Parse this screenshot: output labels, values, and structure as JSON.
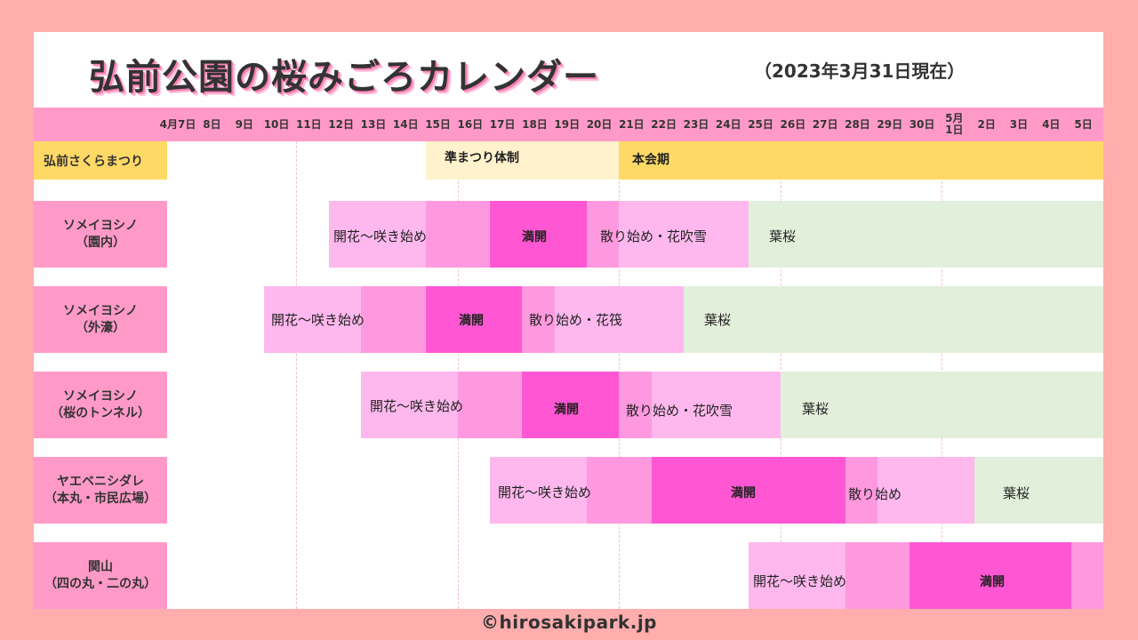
{
  "title": "弘前公園の桜みごろカレンダー",
  "date_note": "（2023年3月31日現在）",
  "dates": [
    "4月7日",
    "8日",
    "9日",
    "10日",
    "11日",
    "12日",
    "13日",
    "14日",
    "15日",
    "16日",
    "17日",
    "18日",
    "19日",
    "20日",
    "21日",
    "22日",
    "23日",
    "24日",
    "25日",
    "26日",
    "27日",
    "28日",
    "29日",
    "30日",
    "5月\n1日",
    "2日",
    "3日",
    "4日",
    "5日"
  ],
  "festival": {
    "label": "弘前さくらまつり",
    "pre_label": "準まつり体制",
    "main_label": "本会期"
  },
  "rows": [
    {
      "line1": "ソメイヨシノ",
      "line2": "（園内）",
      "bloom": "開花～咲き始め",
      "full": "満開",
      "fall": "散り始め・花吹雪",
      "leaf": "葉桜"
    },
    {
      "line1": "ソメイヨシノ",
      "line2": "（外濠）",
      "bloom": "開花～咲き始め",
      "full": "満開",
      "fall": "散り始め・花筏",
      "leaf": "葉桜"
    },
    {
      "line1": "ソメイヨシノ",
      "line2": "（桜のトンネル）",
      "bloom": "開花～咲き始め",
      "full": "満開",
      "fall": "散り始め・花吹雪",
      "leaf": "葉桜"
    },
    {
      "line1": "ヤエベニシダレ",
      "line2": "（本丸・市民広場）",
      "bloom": "開花～咲き始め",
      "full": "満開",
      "fall": "散り始め",
      "leaf": "葉桜"
    },
    {
      "line1": "関山",
      "line2": "（四の丸・二の丸）",
      "bloom": "開花～咲き始め",
      "full": "満開"
    }
  ],
  "colors": {
    "background": "#ffadad",
    "header": "#ff9ac8",
    "festival": "#ffd966",
    "festival_pre": "#fff2cc",
    "bloom": "#ffb8ee",
    "bloom_peak": "#ff99df",
    "full": "#ff57d3",
    "leaf": "#e2efda"
  },
  "footer": "©hirosakipark.jp"
}
